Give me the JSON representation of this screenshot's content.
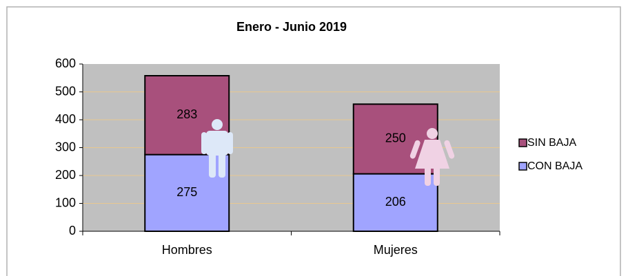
{
  "chart_data": {
    "type": "stacked-bar",
    "title": "Enero - Junio 2019",
    "categories": [
      "Hombres",
      "Mujeres"
    ],
    "series": [
      {
        "name": "CON BAJA",
        "color": "#a0a4ff",
        "values": [
          275,
          206
        ]
      },
      {
        "name": "SIN BAJA",
        "color": "#a8507c",
        "values": [
          283,
          250
        ]
      }
    ],
    "ylim": [
      0,
      600
    ],
    "yticks": [
      0,
      100,
      200,
      300,
      400,
      500,
      600
    ],
    "grid": true
  }
}
